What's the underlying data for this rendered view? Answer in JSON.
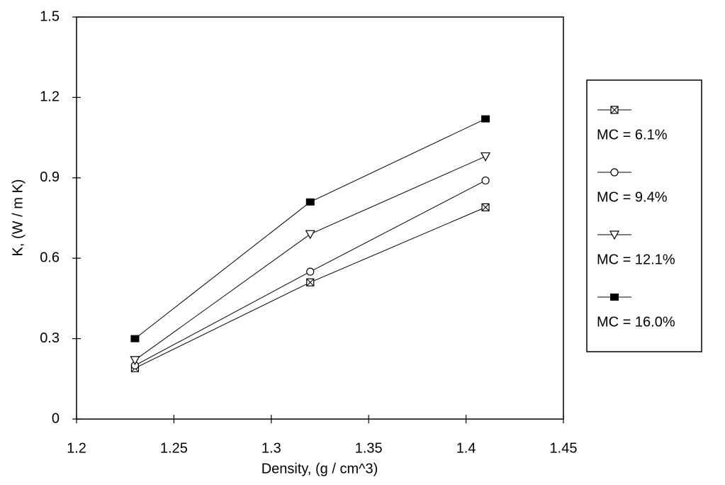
{
  "chart_data": {
    "type": "line",
    "x_label": "Density, (g / cm^3)",
    "y_label": "K, (W / m K)",
    "x": [
      1.23,
      1.32,
      1.41
    ],
    "series": [
      {
        "name": "MC = 6.1%",
        "color": "#000000",
        "marker": "square-x",
        "values": [
          0.19,
          0.51,
          0.79
        ]
      },
      {
        "name": "MC = 9.4%",
        "color": "#000000",
        "marker": "circle",
        "values": [
          0.2,
          0.55,
          0.89
        ]
      },
      {
        "name": "MC = 12.1%",
        "color": "#000000",
        "marker": "triangle-down",
        "values": [
          0.22,
          0.69,
          0.98
        ]
      },
      {
        "name": "MC = 16.0%",
        "color": "#000000",
        "marker": "square-filled",
        "values": [
          0.3,
          0.81,
          1.12
        ]
      }
    ],
    "xlim": [
      1.2,
      1.45
    ],
    "xticks": [
      1.2,
      1.25,
      1.3,
      1.35,
      1.4,
      1.45
    ],
    "ylim": [
      0,
      1.5
    ],
    "yticks": [
      0,
      0.3,
      0.6,
      0.9,
      1.2,
      1.5
    ],
    "grid": false,
    "legend": "right"
  }
}
